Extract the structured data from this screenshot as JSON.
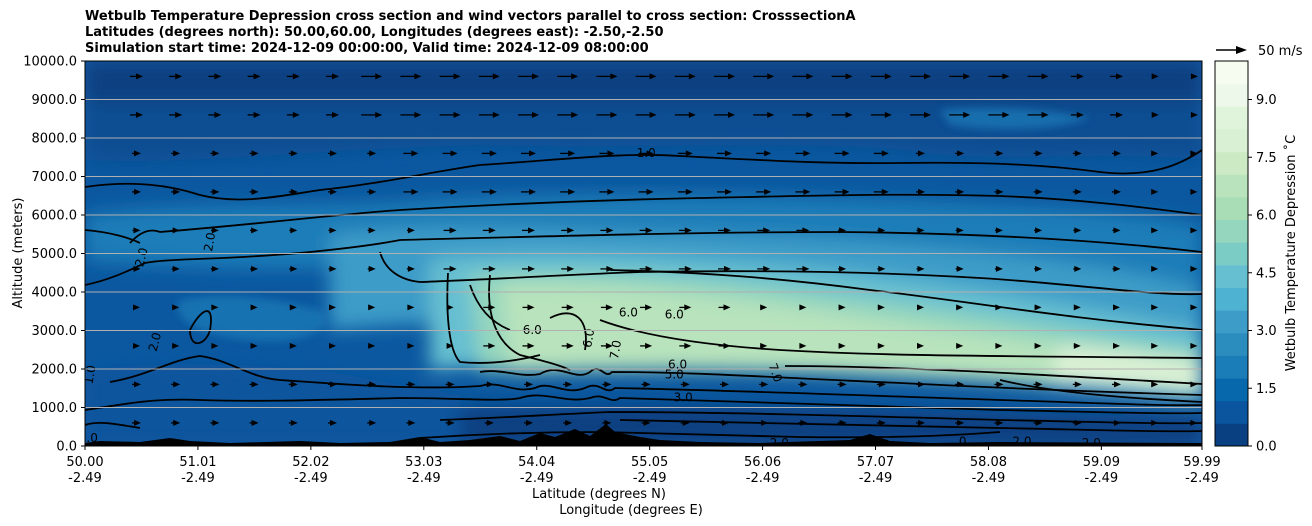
{
  "chart_data": {
    "type": "contour cross-section with wind vectors",
    "title_lines": [
      "Wetbulb Temperature Depression cross section and wind vectors parallel to cross section: CrosssectionA",
      "Latitudes (degrees north): 50.00,60.00, Longitudes (degrees east): -2.50,-2.50",
      "Simulation start time: 2024-12-09 00:00:00, Valid time: 2024-12-09 08:00:00"
    ],
    "xlabel_lines": [
      "Latitude (degrees N)",
      "Longitude (degrees E)"
    ],
    "ylabel": "Altitude (meters)",
    "x_ticks": [
      {
        "lat": "50.00",
        "lon": "-2.49"
      },
      {
        "lat": "51.01",
        "lon": "-2.49"
      },
      {
        "lat": "52.02",
        "lon": "-2.49"
      },
      {
        "lat": "53.03",
        "lon": "-2.49"
      },
      {
        "lat": "54.04",
        "lon": "-2.49"
      },
      {
        "lat": "55.05",
        "lon": "-2.49"
      },
      {
        "lat": "56.06",
        "lon": "-2.49"
      },
      {
        "lat": "57.07",
        "lon": "-2.49"
      },
      {
        "lat": "58.08",
        "lon": "-2.49"
      },
      {
        "lat": "59.09",
        "lon": "-2.49"
      },
      {
        "lat": "59.99",
        "lon": "-2.49"
      }
    ],
    "xlim": [
      50.0,
      59.99
    ],
    "y_ticks": [
      "0.0",
      "1000.0",
      "2000.0",
      "3000.0",
      "4000.0",
      "5000.0",
      "6000.0",
      "7000.0",
      "8000.0",
      "9000.0",
      "10000.0"
    ],
    "ylim": [
      0,
      10000
    ],
    "grid": "horizontal",
    "colorbar": {
      "label": "Wetbulb Temperature Depression $^\\circ$C",
      "display_label": "Wetbulb Temperature Depression ˚C",
      "range": [
        0,
        10
      ],
      "ticks": [
        "0.0",
        "1.5",
        "3.0",
        "4.5",
        "6.0",
        "7.5",
        "9.0"
      ],
      "colors": [
        "#084081",
        "#0a559d",
        "#0868ac",
        "#1b7db8",
        "#2b8cbe",
        "#3e9cc8",
        "#4eb3d3",
        "#66bfd0",
        "#7bccc4",
        "#94d6be",
        "#a8ddb5",
        "#b8e3bc",
        "#ccebc5",
        "#daf0d4",
        "#e0f3db",
        "#eef8ea",
        "#f7fcf0"
      ]
    },
    "vector_key": {
      "label": "50 m/s",
      "speed_ms": 50
    },
    "contour_labels": [
      {
        "text": "1.0",
        "lat": 55.02,
        "alt": 7600,
        "rot": 0
      },
      {
        "text": "2.0",
        "lat": 50.51,
        "alt": 4900,
        "rot": -75
      },
      {
        "text": "2.0",
        "lat": 51.12,
        "alt": 5300,
        "rot": -80
      },
      {
        "text": "2.0",
        "lat": 50.63,
        "alt": 2700,
        "rot": -75
      },
      {
        "text": "6.0",
        "lat": 54.0,
        "alt": 3000,
        "rot": 0
      },
      {
        "text": "6.0",
        "lat": 54.86,
        "alt": 3450,
        "rot": 0
      },
      {
        "text": "6.0",
        "lat": 55.27,
        "alt": 3400,
        "rot": 0
      },
      {
        "text": "6.0",
        "lat": 54.51,
        "alt": 2800,
        "rot": -80
      },
      {
        "text": "7.0",
        "lat": 54.75,
        "alt": 2500,
        "rot": -80
      },
      {
        "text": "6.0",
        "lat": 55.3,
        "alt": 2100,
        "rot": 0
      },
      {
        "text": "5.0",
        "lat": 55.27,
        "alt": 1850,
        "rot": 0
      },
      {
        "text": "3.0",
        "lat": 55.35,
        "alt": 1250,
        "rot": 0
      },
      {
        "text": "7.0",
        "lat": 56.17,
        "alt": 1900,
        "rot": 70
      },
      {
        "text": "2.0",
        "lat": 56.21,
        "alt": 70,
        "rot": 0
      },
      {
        "text": "2.0",
        "lat": 59.0,
        "alt": 70,
        "rot": 0
      },
      {
        "text": "2.0",
        "lat": 58.38,
        "alt": 100,
        "rot": 0
      },
      {
        "text": "0",
        "lat": 57.85,
        "alt": 100,
        "rot": 0
      },
      {
        "text": "1.0",
        "lat": 50.03,
        "alt": 200,
        "rot": 0
      },
      {
        "text": "1.0",
        "lat": 50.05,
        "alt": 1850,
        "rot": -80
      }
    ]
  }
}
